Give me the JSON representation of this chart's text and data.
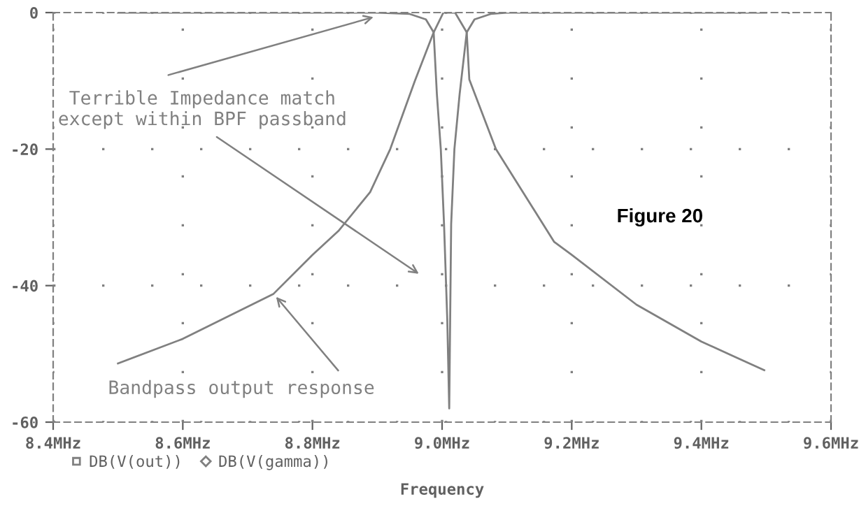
{
  "chart_data": {
    "type": "line",
    "xlabel": "Frequency",
    "legend": "bottom left",
    "grid": true,
    "line_style": "solid",
    "xlim": [
      8.4,
      9.6
    ],
    "ylim": [
      -60,
      0
    ],
    "xticks": [
      {
        "value": 8.4,
        "label": "8.4MHz"
      },
      {
        "value": 8.6,
        "label": "8.6MHz"
      },
      {
        "value": 8.8,
        "label": "8.8MHz"
      },
      {
        "value": 9.0,
        "label": "9.0MHz"
      },
      {
        "value": 9.2,
        "label": "9.2MHz"
      },
      {
        "value": 9.4,
        "label": "9.4MHz"
      },
      {
        "value": 9.6,
        "label": "9.6MHz"
      }
    ],
    "yticks": [
      0,
      -20,
      -40,
      -60
    ],
    "series": [
      {
        "name": "DB(V(out))",
        "color": "#808080",
        "x": [
          8.5,
          8.6,
          8.74,
          8.8,
          8.84,
          8.889,
          8.92,
          8.958,
          8.987,
          9.002,
          9.01,
          9.02,
          9.038,
          9.042,
          9.083,
          9.173,
          9.2,
          9.3,
          9.4,
          9.497
        ],
        "values": [
          -51.4,
          -47.8,
          -41.2,
          -35.5,
          -32,
          -26.3,
          -20,
          -10,
          -2.9,
          0,
          0,
          0,
          -2.9,
          -9.8,
          -20,
          -33.6,
          -35.5,
          -42.8,
          -48.2,
          -52.4
        ]
      },
      {
        "name": "DB(V(gamma))",
        "color": "#808080",
        "x": [
          8.5,
          8.9,
          8.95,
          8.975,
          8.987,
          8.992,
          8.998,
          9.003,
          9.008,
          9.011,
          9.014,
          9.019,
          9.027,
          9.038,
          9.05,
          9.075,
          9.1,
          9.5
        ],
        "values": [
          0,
          0,
          -0.2,
          -1,
          -2.9,
          -12,
          -20,
          -31,
          -45,
          -58,
          -31,
          -20,
          -12,
          -2.9,
          -1,
          -0.2,
          0,
          0
        ]
      }
    ],
    "annotations": [
      {
        "text": "Terrible Impedance match\nexcept within BPF passband",
        "x": 8.9,
        "y": -0.5
      },
      {
        "text": "Bandpass output response",
        "x": 8.74,
        "y": -41.2
      },
      "Figure 20"
    ]
  }
}
